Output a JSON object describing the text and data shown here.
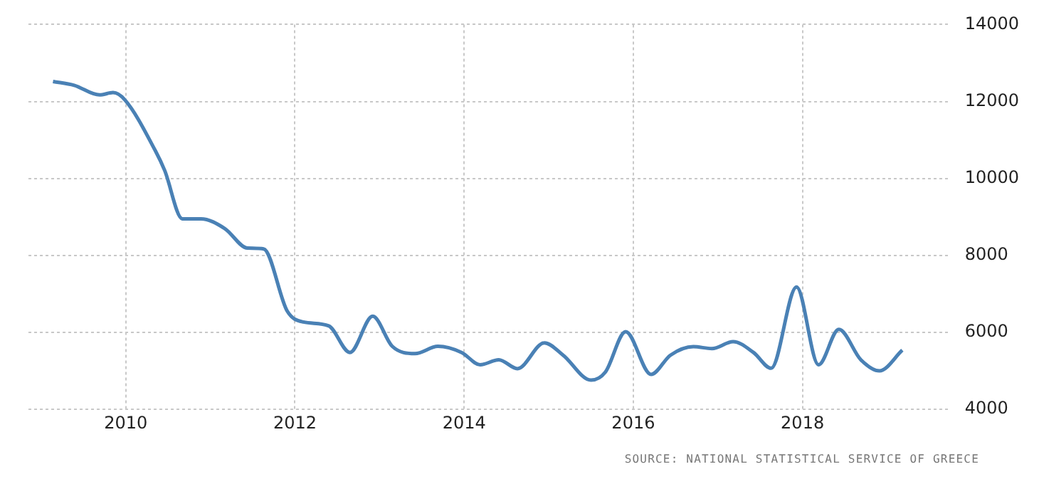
{
  "chart_data": {
    "type": "line",
    "x": [
      2009.14,
      2009.39,
      2009.69,
      2009.85,
      2009.99,
      2010.35,
      2010.46,
      2010.67,
      2010.89,
      2011.17,
      2011.44,
      2011.63,
      2011.91,
      2012.1,
      2012.4,
      2012.65,
      2012.92,
      2013.15,
      2013.42,
      2013.69,
      2013.97,
      2014.19,
      2014.41,
      2014.63,
      2014.95,
      2015.17,
      2015.5,
      2015.67,
      2015.91,
      2016.21,
      2016.44,
      2016.71,
      2016.93,
      2017.18,
      2017.42,
      2017.63,
      2017.93,
      2018.19,
      2018.43,
      2018.69,
      2018.91,
      2019.18
    ],
    "series": [
      {
        "color": "#4a81b5",
        "values": [
          12520,
          12420,
          12170,
          12230,
          12040,
          10720,
          10210,
          8950,
          8950,
          8700,
          8190,
          8170,
          6550,
          6270,
          6170,
          5480,
          6420,
          5640,
          5450,
          5640,
          5480,
          5160,
          5290,
          5060,
          5730,
          5410,
          4760,
          4970,
          6020,
          4910,
          5410,
          5630,
          5580,
          5760,
          5480,
          5070,
          7180,
          5160,
          6080,
          5290,
          5000,
          5540
        ]
      }
    ],
    "xlim": [
      2008.85,
      2019.75
    ],
    "xticks": [
      2010,
      2012,
      2014,
      2016,
      2018
    ],
    "ylim": [
      4000,
      14000
    ],
    "yticks": [
      4000,
      6000,
      8000,
      10000,
      12000,
      14000
    ],
    "grid": true,
    "legend": false,
    "marker": "none",
    "line_style": "solid",
    "annotations": [
      "SOURCE: NATIONAL STATISTICAL SERVICE OF GREECE"
    ]
  }
}
